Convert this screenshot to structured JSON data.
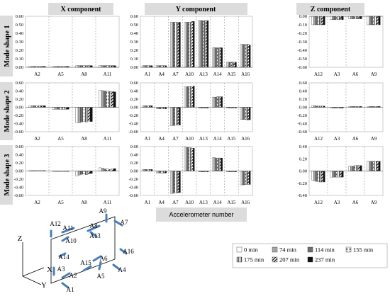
{
  "column_headers": [
    "X component",
    "Y component",
    "Z component"
  ],
  "row_headers": [
    "Mode shape 1",
    "Mode shape 2",
    "Mode shape 3"
  ],
  "x_axis_label": "Accelerometer number",
  "legend": [
    "0 min",
    "74 min",
    "114 min",
    "155 min",
    "175 min",
    "207 min",
    "237 min"
  ],
  "diagram": {
    "sensors": [
      "A1",
      "A2",
      "A3",
      "A4",
      "A5",
      "A6",
      "A7",
      "A8",
      "A9",
      "A10",
      "A11",
      "A12",
      "A13",
      "A14",
      "A15",
      "A16"
    ],
    "axes": [
      "Z",
      "X",
      "Y"
    ]
  },
  "chart_data": [
    {
      "type": "bar",
      "title": "X component",
      "ylabel": "Mode shape 1",
      "xlabel": "Accelerometer number",
      "categories": [
        "A2",
        "A5",
        "A8",
        "A11"
      ],
      "ylim": [
        0,
        0.6
      ],
      "yticks": [
        0,
        0.1,
        0.2,
        0.3,
        0.4,
        0.5,
        0.6
      ],
      "series": [
        {
          "name": "0 min",
          "values": [
            0.01,
            0.01,
            0.02,
            0.02
          ]
        },
        {
          "name": "74 min",
          "values": [
            0.01,
            0.01,
            0.02,
            0.02
          ]
        },
        {
          "name": "114 min",
          "values": [
            0.01,
            0.01,
            0.02,
            0.02
          ]
        },
        {
          "name": "155 min",
          "values": [
            0.01,
            0.01,
            0.02,
            0.02
          ]
        },
        {
          "name": "175 min",
          "values": [
            0.01,
            0.01,
            0.02,
            0.02
          ]
        },
        {
          "name": "207 min",
          "values": [
            0.01,
            0.01,
            0.02,
            0.02
          ]
        },
        {
          "name": "237 min",
          "values": [
            0.01,
            0.01,
            0.02,
            0.02
          ]
        }
      ]
    },
    {
      "type": "bar",
      "title": "Y component",
      "ylabel": "Mode shape 1",
      "xlabel": "Accelerometer number",
      "categories": [
        "A1",
        "A4",
        "A7",
        "A10",
        "A13",
        "A14",
        "A15",
        "A16"
      ],
      "ylim": [
        0,
        0.6
      ],
      "yticks": [
        0,
        0.1,
        0.2,
        0.3,
        0.4,
        0.5,
        0.6
      ],
      "series": [
        {
          "name": "0 min",
          "values": [
            0.02,
            0.02,
            0.53,
            0.53,
            0.55,
            0.23,
            0.06,
            0.27
          ]
        },
        {
          "name": "74 min",
          "values": [
            0.02,
            0.02,
            0.53,
            0.53,
            0.55,
            0.23,
            0.06,
            0.27
          ]
        },
        {
          "name": "114 min",
          "values": [
            0.02,
            0.02,
            0.53,
            0.53,
            0.55,
            0.23,
            0.06,
            0.27
          ]
        },
        {
          "name": "155 min",
          "values": [
            0.02,
            0.02,
            0.53,
            0.53,
            0.55,
            0.23,
            0.06,
            0.27
          ]
        },
        {
          "name": "175 min",
          "values": [
            0.02,
            0.02,
            0.53,
            0.53,
            0.55,
            0.23,
            0.06,
            0.27
          ]
        },
        {
          "name": "207 min",
          "values": [
            0.02,
            0.02,
            0.53,
            0.54,
            0.55,
            0.23,
            0.06,
            0.27
          ]
        },
        {
          "name": "237 min",
          "values": [
            0.02,
            0.02,
            0.53,
            0.54,
            0.55,
            0.23,
            0.06,
            0.26
          ]
        }
      ]
    },
    {
      "type": "bar",
      "title": "Z component",
      "ylabel": "Mode shape 1",
      "xlabel": "Accelerometer number",
      "categories": [
        "A12",
        "A3",
        "A6",
        "A9"
      ],
      "ylim": [
        -0.6,
        0
      ],
      "yticks": [
        0,
        -0.1,
        -0.2,
        -0.3,
        -0.4,
        -0.5,
        -0.6
      ],
      "series": [
        {
          "name": "0 min",
          "values": [
            -0.1,
            -0.04,
            -0.03,
            -0.1
          ]
        },
        {
          "name": "74 min",
          "values": [
            -0.1,
            -0.04,
            -0.03,
            -0.1
          ]
        },
        {
          "name": "114 min",
          "values": [
            -0.1,
            -0.04,
            -0.03,
            -0.1
          ]
        },
        {
          "name": "155 min",
          "values": [
            -0.1,
            -0.04,
            -0.03,
            -0.1
          ]
        },
        {
          "name": "175 min",
          "values": [
            -0.1,
            -0.04,
            -0.03,
            -0.1
          ]
        },
        {
          "name": "207 min",
          "values": [
            -0.1,
            -0.04,
            -0.03,
            -0.1
          ]
        },
        {
          "name": "237 min",
          "values": [
            -0.1,
            -0.04,
            -0.03,
            -0.1
          ]
        }
      ]
    },
    {
      "type": "bar",
      "title": "X component",
      "ylabel": "Mode shape 2",
      "xlabel": "Accelerometer number",
      "categories": [
        "A2",
        "A5",
        "A8",
        "A11"
      ],
      "ylim": [
        -0.6,
        0.6
      ],
      "yticks": [
        0.6,
        0.4,
        0.2,
        0,
        -0.2,
        -0.4,
        -0.6
      ],
      "series": [
        {
          "name": "0 min",
          "values": [
            0.04,
            -0.05,
            -0.38,
            0.42
          ]
        },
        {
          "name": "74 min",
          "values": [
            0.04,
            -0.05,
            -0.38,
            0.41
          ]
        },
        {
          "name": "114 min",
          "values": [
            0.04,
            -0.05,
            -0.36,
            0.4
          ]
        },
        {
          "name": "155 min",
          "values": [
            0.04,
            -0.05,
            -0.35,
            0.4
          ]
        },
        {
          "name": "175 min",
          "values": [
            0.04,
            -0.05,
            -0.36,
            0.39
          ]
        },
        {
          "name": "207 min",
          "values": [
            0.04,
            -0.05,
            -0.34,
            0.39
          ]
        },
        {
          "name": "237 min",
          "values": [
            0.04,
            -0.05,
            -0.35,
            0.38
          ]
        }
      ]
    },
    {
      "type": "bar",
      "title": "Y component",
      "ylabel": "Mode shape 2",
      "xlabel": "Accelerometer number",
      "categories": [
        "A1",
        "A4",
        "A7",
        "A10",
        "A13",
        "A14",
        "A15",
        "A16"
      ],
      "ylim": [
        -0.6,
        0.6
      ],
      "yticks": [
        0.6,
        0.4,
        0.2,
        0,
        -0.2,
        -0.4,
        -0.6
      ],
      "series": [
        {
          "name": "0 min",
          "values": [
            0.04,
            -0.04,
            -0.45,
            0.5,
            -0.02,
            0.25,
            -0.02,
            -0.3
          ]
        },
        {
          "name": "74 min",
          "values": [
            0.04,
            -0.04,
            -0.45,
            0.5,
            -0.02,
            0.25,
            -0.02,
            -0.3
          ]
        },
        {
          "name": "114 min",
          "values": [
            0.04,
            -0.04,
            -0.45,
            0.51,
            -0.02,
            0.25,
            -0.02,
            -0.3
          ]
        },
        {
          "name": "155 min",
          "values": [
            0.04,
            -0.04,
            -0.44,
            0.51,
            -0.02,
            0.26,
            -0.02,
            -0.3
          ]
        },
        {
          "name": "175 min",
          "values": [
            0.04,
            -0.04,
            -0.44,
            0.51,
            -0.02,
            0.26,
            -0.02,
            -0.31
          ]
        },
        {
          "name": "207 min",
          "values": [
            0.04,
            -0.04,
            -0.44,
            0.52,
            -0.02,
            0.26,
            -0.02,
            -0.31
          ]
        },
        {
          "name": "237 min",
          "values": [
            0.04,
            -0.04,
            -0.44,
            0.52,
            -0.02,
            0.26,
            -0.02,
            -0.31
          ]
        }
      ]
    },
    {
      "type": "bar",
      "title": "Z component",
      "ylabel": "Mode shape 2",
      "xlabel": "Accelerometer number",
      "categories": [
        "A12",
        "A3",
        "A6",
        "A9"
      ],
      "ylim": [
        -0.6,
        0.6
      ],
      "yticks": [
        0.6,
        0.4,
        0.2,
        0,
        -0.2,
        -0.4,
        -0.6
      ],
      "series": [
        {
          "name": "0 min",
          "values": [
            0.04,
            -0.02,
            0.02,
            0.02
          ]
        },
        {
          "name": "74 min",
          "values": [
            0.04,
            -0.02,
            0.02,
            0.02
          ]
        },
        {
          "name": "114 min",
          "values": [
            0.03,
            -0.02,
            0.02,
            0.02
          ]
        },
        {
          "name": "155 min",
          "values": [
            0.03,
            -0.02,
            0.02,
            0.02
          ]
        },
        {
          "name": "175 min",
          "values": [
            0.03,
            -0.02,
            0.02,
            0.02
          ]
        },
        {
          "name": "207 min",
          "values": [
            0.03,
            -0.02,
            0.02,
            0.02
          ]
        },
        {
          "name": "237 min",
          "values": [
            0.03,
            -0.02,
            0.02,
            0.02
          ]
        }
      ]
    },
    {
      "type": "bar",
      "title": "X component",
      "ylabel": "Mode shape 3",
      "xlabel": "Accelerometer number",
      "categories": [
        "A2",
        "A5",
        "A8",
        "A11"
      ],
      "ylim": [
        -0.6,
        0.6
      ],
      "yticks": [
        0.6,
        0.4,
        0.2,
        0,
        -0.2,
        -0.4,
        -0.6
      ],
      "series": [
        {
          "name": "0 min",
          "values": [
            0.01,
            -0.01,
            -0.12,
            0.08
          ]
        },
        {
          "name": "74 min",
          "values": [
            0.01,
            -0.01,
            -0.1,
            0.07
          ]
        },
        {
          "name": "114 min",
          "values": [
            0.01,
            -0.01,
            -0.08,
            0.05
          ]
        },
        {
          "name": "155 min",
          "values": [
            0.01,
            -0.01,
            -0.07,
            0.05
          ]
        },
        {
          "name": "175 min",
          "values": [
            0.01,
            -0.01,
            -0.09,
            0.04
          ]
        },
        {
          "name": "207 min",
          "values": [
            0.01,
            -0.01,
            -0.07,
            0.05
          ]
        },
        {
          "name": "237 min",
          "values": [
            0.01,
            -0.01,
            -0.06,
            0.06
          ]
        }
      ]
    },
    {
      "type": "bar",
      "title": "Y component",
      "ylabel": "Mode shape 3",
      "xlabel": "Accelerometer number",
      "categories": [
        "A1",
        "A4",
        "A7",
        "A10",
        "A13",
        "A14",
        "A15",
        "A16"
      ],
      "ylim": [
        -0.6,
        0.6
      ],
      "yticks": [
        0.6,
        0.4,
        0.2,
        0,
        -0.2,
        -0.4,
        -0.6
      ],
      "series": [
        {
          "name": "0 min",
          "values": [
            0.04,
            -0.05,
            -0.55,
            0.59,
            -0.02,
            0.33,
            -0.02,
            -0.34
          ]
        },
        {
          "name": "74 min",
          "values": [
            0.04,
            -0.05,
            -0.55,
            0.58,
            -0.02,
            0.33,
            -0.02,
            -0.34
          ]
        },
        {
          "name": "114 min",
          "values": [
            0.04,
            -0.05,
            -0.54,
            0.58,
            -0.02,
            0.32,
            -0.02,
            -0.34
          ]
        },
        {
          "name": "155 min",
          "values": [
            0.04,
            -0.05,
            -0.54,
            0.57,
            -0.02,
            0.32,
            -0.02,
            -0.33
          ]
        },
        {
          "name": "175 min",
          "values": [
            0.04,
            -0.05,
            -0.54,
            0.57,
            -0.02,
            0.32,
            -0.02,
            -0.33
          ]
        },
        {
          "name": "207 min",
          "values": [
            0.04,
            -0.05,
            -0.53,
            0.56,
            -0.02,
            0.32,
            -0.02,
            -0.33
          ]
        },
        {
          "name": "237 min",
          "values": [
            0.04,
            -0.05,
            -0.53,
            0.56,
            -0.02,
            0.32,
            -0.02,
            -0.33
          ]
        }
      ]
    },
    {
      "type": "bar",
      "title": "Z component",
      "ylabel": "Mode shape 3",
      "xlabel": "Accelerometer number",
      "categories": [
        "A12",
        "A3",
        "A6",
        "A9"
      ],
      "ylim": [
        -0.4,
        0.4
      ],
      "yticks": [
        0.4,
        0.2,
        0,
        -0.2,
        -0.4
      ],
      "series": [
        {
          "name": "0 min",
          "values": [
            -0.15,
            -0.1,
            0.08,
            0.16
          ]
        },
        {
          "name": "74 min",
          "values": [
            -0.16,
            -0.1,
            0.08,
            0.16
          ]
        },
        {
          "name": "114 min",
          "values": [
            -0.17,
            -0.1,
            0.08,
            0.16
          ]
        },
        {
          "name": "155 min",
          "values": [
            -0.17,
            -0.1,
            0.09,
            0.16
          ]
        },
        {
          "name": "175 min",
          "values": [
            -0.18,
            -0.1,
            0.09,
            0.16
          ]
        },
        {
          "name": "207 min",
          "values": [
            -0.18,
            -0.1,
            0.09,
            0.16
          ]
        },
        {
          "name": "237 min",
          "values": [
            -0.18,
            -0.1,
            0.09,
            0.16
          ]
        }
      ]
    }
  ]
}
